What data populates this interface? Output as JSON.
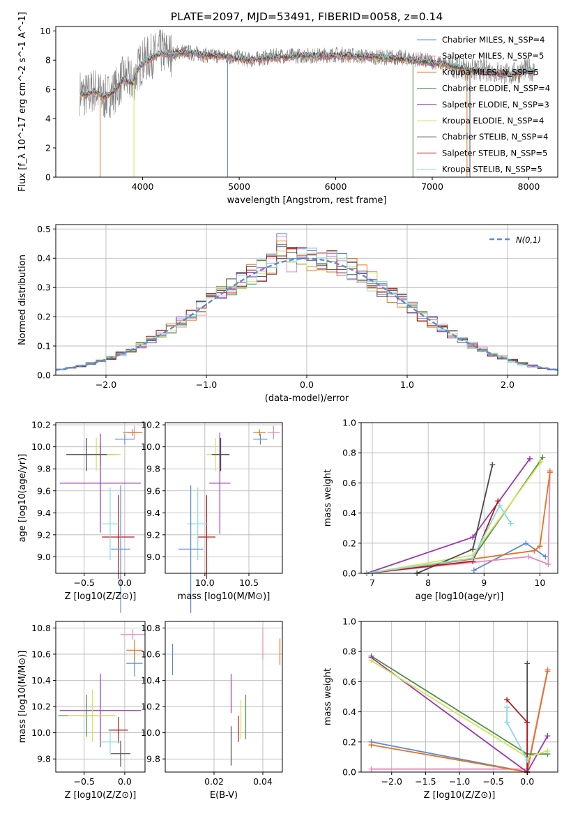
{
  "figure_title": "PLATE=2097, MJD=53491, FIBERID=0058, z=0.14",
  "series_colors": [
    "#5b8ad6",
    "#e889b8",
    "#e2751e",
    "#4e8f4a",
    "#9a36b3",
    "#cfe657",
    "#4a4a4a",
    "#b51919",
    "#88dcdd"
  ],
  "chart_data": [
    {
      "id": "spectrum",
      "type": "line",
      "xlabel": "wavelength [Angstrom, rest frame]",
      "ylabel": "Flux [f_λ 10^-17 erg cm^-2 s^-1 A^-1]",
      "xlim": [
        3100,
        8300
      ],
      "ylim": [
        0,
        10.3
      ],
      "xticks": [
        4000,
        5000,
        6000,
        7000,
        8000
      ],
      "yticks": [
        0,
        2,
        4,
        6,
        8,
        10
      ],
      "grid": false,
      "legend_position": "right",
      "data_line": {
        "color": "#808080",
        "points": [
          [
            3350,
            5.8
          ],
          [
            3420,
            5.6
          ],
          [
            3500,
            6.0
          ],
          [
            3600,
            5.4
          ],
          [
            3700,
            5.8
          ],
          [
            3800,
            6.8
          ],
          [
            3900,
            6.5
          ],
          [
            3950,
            7.4
          ],
          [
            4000,
            7.9
          ],
          [
            4100,
            8.3
          ],
          [
            4200,
            8.6
          ],
          [
            4300,
            8.4
          ],
          [
            4400,
            8.6
          ],
          [
            4500,
            8.5
          ],
          [
            4600,
            8.4
          ],
          [
            4700,
            8.3
          ],
          [
            4800,
            8.3
          ],
          [
            4900,
            8.2
          ],
          [
            5000,
            8.2
          ],
          [
            5100,
            8.0
          ],
          [
            5200,
            8.1
          ],
          [
            5300,
            8.2
          ],
          [
            5400,
            8.3
          ],
          [
            5500,
            8.3
          ],
          [
            5600,
            8.3
          ],
          [
            5800,
            8.3
          ],
          [
            6000,
            8.4
          ],
          [
            6200,
            8.3
          ],
          [
            6400,
            8.2
          ],
          [
            6600,
            8.2
          ],
          [
            6800,
            8.1
          ],
          [
            7000,
            7.9
          ],
          [
            7200,
            7.6
          ],
          [
            7400,
            7.3
          ],
          [
            7600,
            7.3
          ],
          [
            7800,
            7.0
          ],
          [
            8000,
            7.4
          ],
          [
            8060,
            7.2
          ]
        ]
      },
      "series": [
        {
          "name": "Chabrier MILES, N_SSP=4"
        },
        {
          "name": "Salpeter MILES, N_SSP=5"
        },
        {
          "name": "Kroupa MILES, N_SSP=5"
        },
        {
          "name": "Chabrier ELODIE, N_SSP=4"
        },
        {
          "name": "Salpeter ELODIE, N_SSP=3"
        },
        {
          "name": "Kroupa ELODIE, N_SSP=4"
        },
        {
          "name": "Chabrier STELIB, N_SSP=4"
        },
        {
          "name": "Salpeter STELIB, N_SSP=5"
        },
        {
          "name": "Kroupa STELIB, N_SSP=5"
        }
      ],
      "model_line": {
        "points": [
          [
            3350,
            5.7
          ],
          [
            3420,
            5.6
          ],
          [
            3500,
            5.9
          ],
          [
            3600,
            5.5
          ],
          [
            3700,
            5.8
          ],
          [
            3800,
            6.7
          ],
          [
            3900,
            6.4
          ],
          [
            3950,
            7.3
          ],
          [
            4000,
            7.8
          ],
          [
            4100,
            8.2
          ],
          [
            4200,
            8.5
          ],
          [
            4300,
            8.4
          ],
          [
            4400,
            8.5
          ],
          [
            4500,
            8.5
          ],
          [
            4600,
            8.4
          ],
          [
            4700,
            8.3
          ],
          [
            4800,
            8.3
          ],
          [
            4900,
            8.2
          ],
          [
            5000,
            8.1
          ],
          [
            5100,
            8.0
          ],
          [
            5200,
            8.1
          ],
          [
            5300,
            8.2
          ],
          [
            5400,
            8.2
          ],
          [
            5500,
            8.2
          ],
          [
            5600,
            8.3
          ],
          [
            5800,
            8.3
          ],
          [
            6000,
            8.3
          ],
          [
            6200,
            8.3
          ],
          [
            6400,
            8.2
          ],
          [
            6600,
            8.1
          ],
          [
            6800,
            8.0
          ],
          [
            7000,
            7.8
          ],
          [
            7200,
            7.6
          ],
          [
            7400,
            7.3
          ],
          [
            7600,
            7.2
          ],
          [
            7800,
            7.0
          ],
          [
            8000,
            7.3
          ],
          [
            8060,
            7.2
          ]
        ]
      }
    },
    {
      "id": "residual_hist",
      "type": "line",
      "xlabel": "(data-model)/error",
      "ylabel": "Normed distribution",
      "xlim": [
        -2.5,
        2.5
      ],
      "ylim": [
        0,
        0.515
      ],
      "xticks": [
        -2,
        -1,
        0,
        1,
        2
      ],
      "yticks": [
        0.0,
        0.1,
        0.2,
        0.3,
        0.4,
        0.5
      ],
      "grid": true,
      "legend_position": "upper right",
      "legend": "N(0,1)",
      "peak_values": [
        0.49,
        0.48,
        0.47,
        0.46,
        0.45,
        0.43,
        0.42,
        0.41,
        0.4
      ]
    },
    {
      "id": "age_vs_Z",
      "type": "scatter",
      "xlabel": "Z [log10(Z/Z⊙)]",
      "ylabel": "age [log10(age/yr)]",
      "xlim": [
        -0.85,
        0.25
      ],
      "ylim": [
        8.85,
        10.22
      ],
      "xticks": [
        -0.5,
        0.0
      ],
      "yticks": [
        9.0,
        9.2,
        9.4,
        9.6,
        9.8,
        10.0,
        10.2
      ],
      "grid": true,
      "points": [
        {
          "x": 0.0,
          "y": 10.07,
          "xerr": 0.12,
          "yerr": 0.05
        },
        {
          "x": 0.12,
          "y": 10.13,
          "xerr": 0.08,
          "yerr": 0.06
        },
        {
          "x": 0.1,
          "y": 10.13,
          "xerr": 0.12,
          "yerr": 0.03
        },
        {
          "x": -0.3,
          "y": 9.93,
          "xerr": 0.2,
          "yerr": 0.1
        },
        {
          "x": -0.3,
          "y": 9.67,
          "xerr": 0.5,
          "yerr": 0.45
        },
        {
          "x": -0.35,
          "y": 9.93,
          "xerr": 0.3,
          "yerr": 0.15
        },
        {
          "x": -0.47,
          "y": 9.93,
          "xerr": 0.25,
          "yerr": 0.15
        },
        {
          "x": -0.08,
          "y": 9.18,
          "xerr": 0.2,
          "yerr": 0.38
        },
        {
          "x": -0.18,
          "y": 9.3,
          "xerr": 0.1,
          "yerr": 0.33
        },
        {
          "x": -0.05,
          "y": 9.07,
          "xerr": 0.12,
          "yerr": 0.58
        }
      ]
    },
    {
      "id": "age_vs_mass",
      "type": "scatter",
      "xlabel": "mass [log10(M/M⊙)]",
      "ylabel": "",
      "xlim": [
        9.55,
        10.88
      ],
      "ylim": [
        8.85,
        10.22
      ],
      "xticks": [
        10.0,
        10.5
      ],
      "yticks": [
        9.0,
        9.2,
        9.4,
        9.6,
        9.8,
        10.0,
        10.2
      ],
      "grid": true,
      "points": [
        {
          "x": 10.63,
          "y": 10.07,
          "xerr": 0.08,
          "yerr": 0.05
        },
        {
          "x": 10.78,
          "y": 10.13,
          "xerr": 0.07,
          "yerr": 0.06
        },
        {
          "x": 10.62,
          "y": 10.13,
          "xerr": 0.07,
          "yerr": 0.03
        },
        {
          "x": 10.17,
          "y": 9.93,
          "xerr": 0.1,
          "yerr": 0.15
        },
        {
          "x": 10.17,
          "y": 9.67,
          "xerr": 0.12,
          "yerr": 0.46
        },
        {
          "x": 10.12,
          "y": 9.93,
          "xerr": 0.1,
          "yerr": 0.15
        },
        {
          "x": 10.18,
          "y": 9.93,
          "xerr": 0.1,
          "yerr": 0.15
        },
        {
          "x": 10.02,
          "y": 9.18,
          "xerr": 0.1,
          "yerr": 0.38
        },
        {
          "x": 9.92,
          "y": 9.3,
          "xerr": 0.12,
          "yerr": 0.33
        },
        {
          "x": 9.84,
          "y": 9.07,
          "xerr": 0.14,
          "yerr": 0.58
        }
      ]
    },
    {
      "id": "mass_weight_vs_age",
      "type": "line",
      "xlabel": "age [log10(age/yr)]",
      "ylabel": "mass weight",
      "xlim": [
        6.8,
        10.32
      ],
      "ylim": [
        0,
        1.0
      ],
      "xticks": [
        7,
        8,
        9,
        10
      ],
      "yticks": [
        0.0,
        0.2,
        0.4,
        0.6,
        0.8,
        1.0
      ],
      "grid": true,
      "series": [
        {
          "values": [
            [
              8.82,
              0.02
            ],
            [
              9.75,
              0.2
            ],
            [
              10.1,
              0.11
            ]
          ]
        },
        {
          "values": [
            [
              6.9,
              0.0
            ],
            [
              9.8,
              0.11
            ],
            [
              10.15,
              0.06
            ],
            [
              10.18,
              0.68
            ]
          ]
        },
        {
          "values": [
            [
              6.9,
              0.0
            ],
            [
              9.9,
              0.15
            ],
            [
              10.0,
              0.18
            ],
            [
              10.18,
              0.67
            ]
          ]
        },
        {
          "values": [
            [
              6.9,
              0.0
            ],
            [
              8.8,
              0.1
            ],
            [
              10.05,
              0.77
            ]
          ]
        },
        {
          "values": [
            [
              6.9,
              0.0
            ],
            [
              8.8,
              0.24
            ],
            [
              9.82,
              0.76
            ]
          ]
        },
        {
          "values": [
            [
              6.9,
              0.0
            ],
            [
              8.8,
              0.12
            ],
            [
              10.02,
              0.74
            ]
          ]
        },
        {
          "values": [
            [
              7.8,
              0.0
            ],
            [
              8.8,
              0.16
            ],
            [
              9.15,
              0.72
            ]
          ]
        },
        {
          "values": [
            [
              6.9,
              0.0
            ],
            [
              8.8,
              0.08
            ],
            [
              9.25,
              0.48
            ]
          ]
        },
        {
          "values": [
            [
              6.9,
              0.0
            ],
            [
              8.8,
              0.1
            ],
            [
              9.28,
              0.45
            ],
            [
              9.48,
              0.33
            ]
          ]
        }
      ]
    },
    {
      "id": "mass_vs_Z",
      "type": "scatter",
      "xlabel": "Z [log10(Z/Z⊙)]",
      "ylabel": "mass [log10(M/M⊙)]",
      "xlim": [
        -0.85,
        0.25
      ],
      "ylim": [
        9.7,
        10.85
      ],
      "xticks": [
        -0.5,
        0.0
      ],
      "yticks": [
        9.8,
        10.0,
        10.2,
        10.4,
        10.6,
        10.8
      ],
      "grid": true,
      "points": [
        {
          "x": 0.12,
          "y": 10.53,
          "xerr": 0.1,
          "yerr": 0.1
        },
        {
          "x": 0.1,
          "y": 10.75,
          "xerr": 0.15,
          "yerr": 0.04
        },
        {
          "x": 0.12,
          "y": 10.63,
          "xerr": 0.1,
          "yerr": 0.08
        },
        {
          "x": -0.47,
          "y": 10.13,
          "xerr": 0.35,
          "yerr": 0.16
        },
        {
          "x": -0.3,
          "y": 10.17,
          "xerr": 0.5,
          "yerr": 0.28
        },
        {
          "x": -0.4,
          "y": 10.13,
          "xerr": 0.3,
          "yerr": 0.2
        },
        {
          "x": -0.05,
          "y": 9.84,
          "xerr": 0.12,
          "yerr": 0.1
        },
        {
          "x": -0.08,
          "y": 10.02,
          "xerr": 0.12,
          "yerr": 0.1
        },
        {
          "x": -0.18,
          "y": 9.93,
          "xerr": 0.12,
          "yerr": 0.1
        }
      ]
    },
    {
      "id": "mass_vs_ebv",
      "type": "scatter",
      "xlabel": "E(B-V)",
      "ylabel": "",
      "xlim": [
        0.0,
        0.048
      ],
      "ylim": [
        9.7,
        10.85
      ],
      "xticks": [
        0.02,
        0.04
      ],
      "yticks": [
        9.8,
        10.0,
        10.2,
        10.4,
        10.6,
        10.8
      ],
      "grid": true,
      "points": [
        {
          "x": 0.003,
          "y": 10.56,
          "yerr": 0.12
        },
        {
          "x": 0.04,
          "y": 10.68,
          "yerr": 0.12
        },
        {
          "x": 0.047,
          "y": 10.62,
          "yerr": 0.1
        },
        {
          "x": 0.033,
          "y": 10.12,
          "yerr": 0.17
        },
        {
          "x": 0.027,
          "y": 10.3,
          "yerr": 0.15
        },
        {
          "x": 0.031,
          "y": 10.1,
          "yerr": 0.15
        },
        {
          "x": 0.027,
          "y": 9.9,
          "yerr": 0.15
        },
        {
          "x": 0.03,
          "y": 10.03,
          "yerr": 0.1
        }
      ]
    },
    {
      "id": "mass_weight_vs_Z",
      "type": "line",
      "xlabel": "Z [log10(Z/Z⊙)]",
      "ylabel": "mass weight",
      "xlim": [
        -2.45,
        0.45
      ],
      "ylim": [
        0,
        1.0
      ],
      "xticks": [
        -2.0,
        -1.5,
        -1.0,
        -0.5,
        0.0
      ],
      "yticks": [
        0.0,
        0.2,
        0.4,
        0.6,
        0.8,
        1.0
      ],
      "grid": true,
      "series": [
        {
          "values": [
            [
              -2.3,
              0.2
            ],
            [
              0.0,
              0.0
            ]
          ]
        },
        {
          "values": [
            [
              -2.3,
              0.02
            ],
            [
              0.0,
              0.02
            ],
            [
              0.3,
              0.68
            ]
          ]
        },
        {
          "values": [
            [
              -2.3,
              0.18
            ],
            [
              0.0,
              0.0
            ],
            [
              0.3,
              0.67
            ]
          ]
        },
        {
          "values": [
            [
              -2.3,
              0.77
            ],
            [
              0.0,
              0.12
            ],
            [
              0.3,
              0.12
            ]
          ]
        },
        {
          "values": [
            [
              -2.3,
              0.76
            ],
            [
              0.0,
              0.0
            ],
            [
              0.3,
              0.24
            ]
          ]
        },
        {
          "values": [
            [
              -2.3,
              0.74
            ],
            [
              0.0,
              0.1
            ],
            [
              0.3,
              0.14
            ]
          ]
        },
        {
          "values": [
            [
              0.0,
              0.0
            ],
            [
              0.0,
              0.72
            ]
          ]
        },
        {
          "values": [
            [
              -0.3,
              0.48
            ],
            [
              0.0,
              0.33
            ],
            [
              0.0,
              0.0
            ]
          ]
        },
        {
          "values": [
            [
              -0.3,
              0.43
            ],
            [
              -0.3,
              0.33
            ],
            [
              0.0,
              0.08
            ]
          ]
        }
      ]
    }
  ]
}
